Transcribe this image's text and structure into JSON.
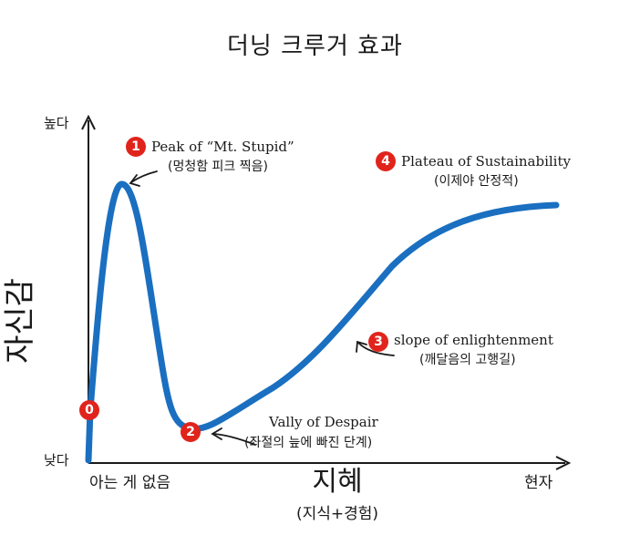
{
  "title": "더닝 크루거 효과",
  "y_axis": {
    "label": "자신감",
    "high": "높다",
    "low": "낮다"
  },
  "x_axis": {
    "label": "지혜",
    "sub": "(지식+경험)",
    "min": "아는 게 없음",
    "max": "현자"
  },
  "stages": [
    {
      "badge": "0",
      "title": "",
      "sub": ""
    },
    {
      "badge": "1",
      "title": "Peak of “Mt. Stupid”",
      "sub": "(멍청함 피크 찍음)"
    },
    {
      "badge": "2",
      "title": "Vally of Despair",
      "sub": "(좌절의 늪에 빠진 단계)"
    },
    {
      "badge": "3",
      "title": "slope of enlightenment",
      "sub": "(깨달음의 고행길)"
    },
    {
      "badge": "4",
      "title": "Plateau of Sustainability",
      "sub": "(이제야 안정적)"
    }
  ],
  "colors": {
    "curve": "#1a6fc0",
    "badge": "#e0241c",
    "axis": "#1a1a1a"
  }
}
